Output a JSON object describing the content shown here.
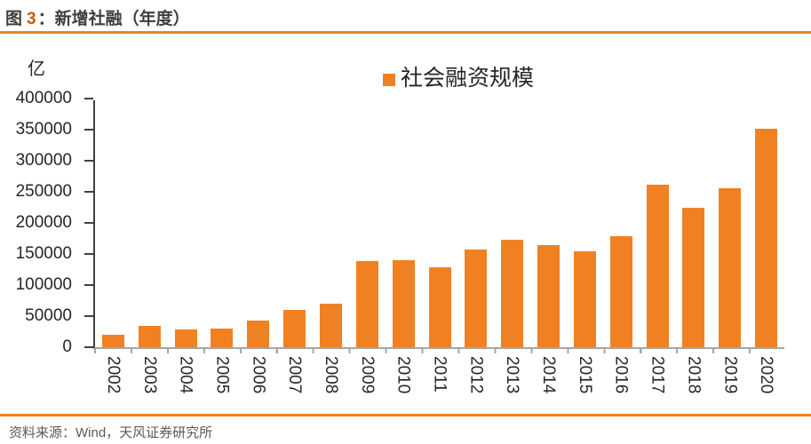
{
  "page": {
    "figure_label": "图",
    "figure_number": "3",
    "figure_title_suffix": "：新增社融（年度）",
    "source_text": "资料来源：Wind，天风证券研究所"
  },
  "colors": {
    "accent_orange": "#F08122",
    "figure_number": "#C55A11",
    "title_text": "#3F3F3F",
    "axis_text": "#262626",
    "footer_text": "#595959",
    "y_axis_line": "#404040",
    "x_axis_line": "#A6A6A6",
    "bar_fill": "#F08122"
  },
  "chart_data": {
    "type": "bar",
    "title": "新增社融（年度）",
    "unit_label": "亿",
    "legend_position": "top-center",
    "grid": false,
    "categories": [
      "2002",
      "2003",
      "2004",
      "2005",
      "2006",
      "2007",
      "2008",
      "2009",
      "2010",
      "2011",
      "2012",
      "2013",
      "2014",
      "2015",
      "2016",
      "2017",
      "2018",
      "2019",
      "2020"
    ],
    "series": [
      {
        "name": "社会融资规模",
        "color": "#F08122",
        "values": [
          20000,
          34000,
          28500,
          30000,
          42500,
          59500,
          70000,
          139000,
          140000,
          128000,
          157500,
          173000,
          164500,
          154000,
          178000,
          262000,
          224500,
          255500,
          352000
        ]
      }
    ],
    "ylim": [
      0,
      400000
    ],
    "ytick_step": 50000,
    "xlabel": "",
    "ylabel": "亿"
  }
}
